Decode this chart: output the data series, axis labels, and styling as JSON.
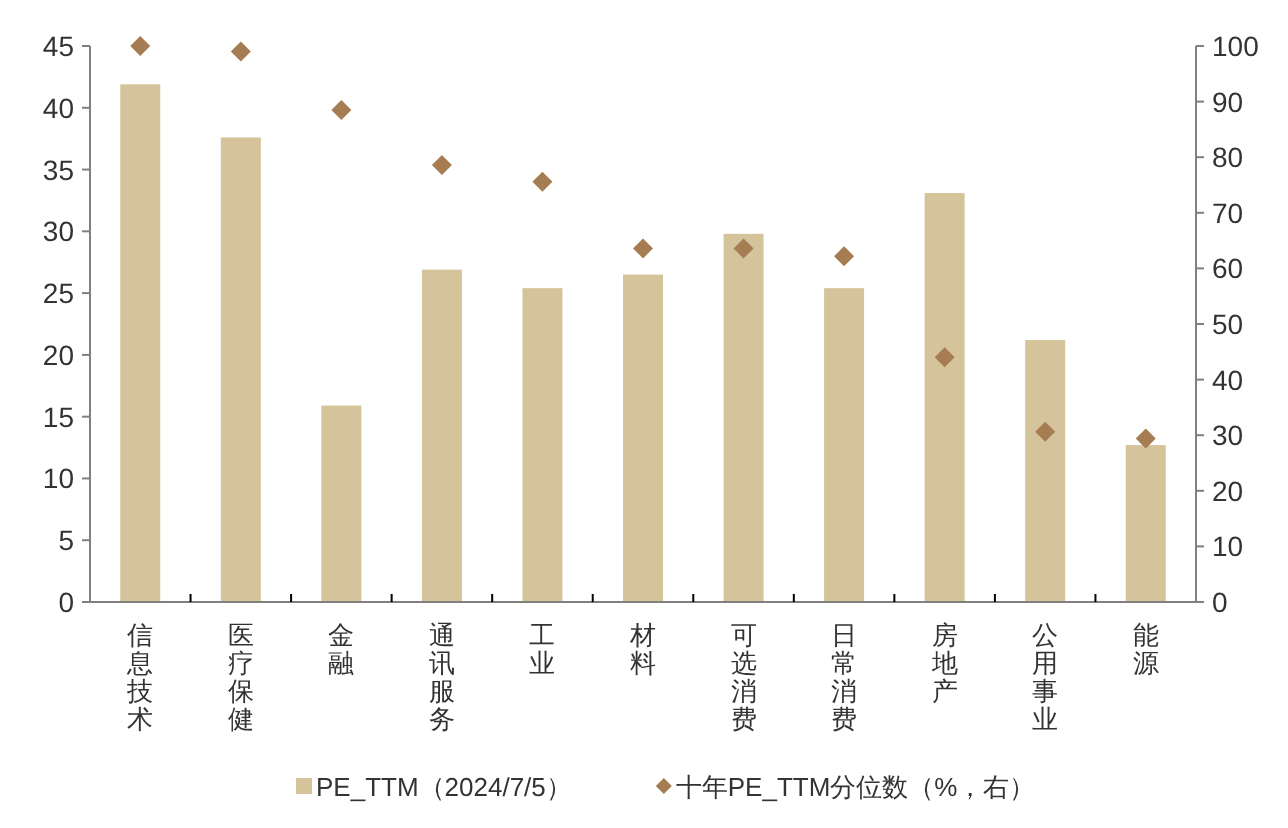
{
  "chart_data": {
    "type": "bar",
    "categories": [
      "信息技术",
      "医疗保健",
      "金融",
      "通讯服务",
      "工业",
      "材料",
      "可选消费",
      "日常消费",
      "房地产",
      "公用事业",
      "能源"
    ],
    "series": [
      {
        "name": "PE_TTM（2024/7/5）",
        "color": "#d5c49b",
        "values": [
          41.9,
          37.6,
          15.9,
          26.9,
          25.4,
          26.5,
          29.8,
          25.4,
          33.1,
          21.2,
          12.7
        ]
      },
      {
        "name": "十年PE_TTM分位数（%，右）",
        "type": "scatter",
        "axis": "y2",
        "marker": "diamond",
        "color": "#a67c52",
        "values": [
          100,
          99,
          88.5,
          78.6,
          75.6,
          63.6,
          63.6,
          62.2,
          44.0,
          30.6,
          29.4
        ]
      }
    ],
    "ylim": [
      0,
      45
    ],
    "yticks": [
      0,
      5,
      10,
      15,
      20,
      25,
      30,
      35,
      40,
      45
    ],
    "y2lim": [
      0,
      100
    ],
    "y2ticks": [
      0,
      10,
      20,
      30,
      40,
      50,
      60,
      70,
      80,
      90,
      100
    ],
    "legend": "bottom",
    "grid": false
  }
}
